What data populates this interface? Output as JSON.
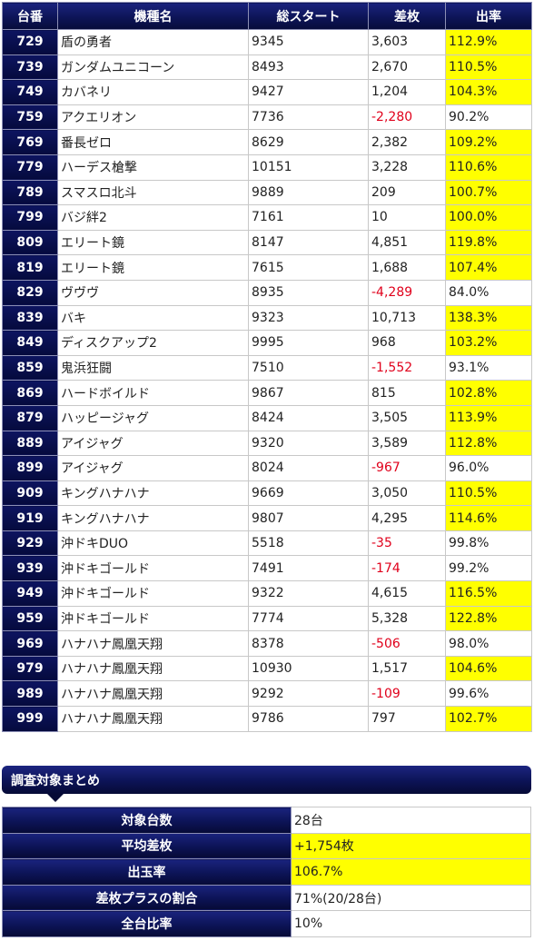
{
  "table": {
    "headers": [
      "台番",
      "機種名",
      "総スタート",
      "差枚",
      "出率"
    ],
    "rows": [
      {
        "no": "729",
        "name": "盾の勇者",
        "start": "9345",
        "diff": "3,603",
        "rate": "112.9%",
        "neg": false,
        "hl": true
      },
      {
        "no": "739",
        "name": "ガンダムユニコーン",
        "start": "8493",
        "diff": "2,670",
        "rate": "110.5%",
        "neg": false,
        "hl": true
      },
      {
        "no": "749",
        "name": "カバネリ",
        "start": "9427",
        "diff": "1,204",
        "rate": "104.3%",
        "neg": false,
        "hl": true
      },
      {
        "no": "759",
        "name": "アクエリオン",
        "start": "7736",
        "diff": "-2,280",
        "rate": "90.2%",
        "neg": true,
        "hl": false
      },
      {
        "no": "769",
        "name": "番長ゼロ",
        "start": "8629",
        "diff": "2,382",
        "rate": "109.2%",
        "neg": false,
        "hl": true
      },
      {
        "no": "779",
        "name": "ハーデス槍撃",
        "start": "10151",
        "diff": "3,228",
        "rate": "110.6%",
        "neg": false,
        "hl": true
      },
      {
        "no": "789",
        "name": "スマスロ北斗",
        "start": "9889",
        "diff": "209",
        "rate": "100.7%",
        "neg": false,
        "hl": true
      },
      {
        "no": "799",
        "name": "バジ絆2",
        "start": "7161",
        "diff": "10",
        "rate": "100.0%",
        "neg": false,
        "hl": true
      },
      {
        "no": "809",
        "name": "エリート鏡",
        "start": "8147",
        "diff": "4,851",
        "rate": "119.8%",
        "neg": false,
        "hl": true
      },
      {
        "no": "819",
        "name": "エリート鏡",
        "start": "7615",
        "diff": "1,688",
        "rate": "107.4%",
        "neg": false,
        "hl": true
      },
      {
        "no": "829",
        "name": "ヴヴヴ",
        "start": "8935",
        "diff": "-4,289",
        "rate": "84.0%",
        "neg": true,
        "hl": false
      },
      {
        "no": "839",
        "name": "バキ",
        "start": "9323",
        "diff": "10,713",
        "rate": "138.3%",
        "neg": false,
        "hl": true
      },
      {
        "no": "849",
        "name": "ディスクアップ2",
        "start": "9995",
        "diff": "968",
        "rate": "103.2%",
        "neg": false,
        "hl": true
      },
      {
        "no": "859",
        "name": "鬼浜狂闘",
        "start": "7510",
        "diff": "-1,552",
        "rate": "93.1%",
        "neg": true,
        "hl": false
      },
      {
        "no": "869",
        "name": "ハードボイルド",
        "start": "9867",
        "diff": "815",
        "rate": "102.8%",
        "neg": false,
        "hl": true
      },
      {
        "no": "879",
        "name": "ハッピージャグ",
        "start": "8424",
        "diff": "3,505",
        "rate": "113.9%",
        "neg": false,
        "hl": true
      },
      {
        "no": "889",
        "name": "アイジャグ",
        "start": "9320",
        "diff": "3,589",
        "rate": "112.8%",
        "neg": false,
        "hl": true
      },
      {
        "no": "899",
        "name": "アイジャグ",
        "start": "8024",
        "diff": "-967",
        "rate": "96.0%",
        "neg": true,
        "hl": false
      },
      {
        "no": "909",
        "name": "キングハナハナ",
        "start": "9669",
        "diff": "3,050",
        "rate": "110.5%",
        "neg": false,
        "hl": true
      },
      {
        "no": "919",
        "name": "キングハナハナ",
        "start": "9807",
        "diff": "4,295",
        "rate": "114.6%",
        "neg": false,
        "hl": true
      },
      {
        "no": "929",
        "name": "沖ドキDUO",
        "start": "5518",
        "diff": "-35",
        "rate": "99.8%",
        "neg": true,
        "hl": false
      },
      {
        "no": "939",
        "name": "沖ドキゴールド",
        "start": "7491",
        "diff": "-174",
        "rate": "99.2%",
        "neg": true,
        "hl": false
      },
      {
        "no": "949",
        "name": "沖ドキゴールド",
        "start": "9322",
        "diff": "4,615",
        "rate": "116.5%",
        "neg": false,
        "hl": true
      },
      {
        "no": "959",
        "name": "沖ドキゴールド",
        "start": "7774",
        "diff": "5,328",
        "rate": "122.8%",
        "neg": false,
        "hl": true
      },
      {
        "no": "969",
        "name": "ハナハナ鳳凰天翔",
        "start": "8378",
        "diff": "-506",
        "rate": "98.0%",
        "neg": true,
        "hl": false
      },
      {
        "no": "979",
        "name": "ハナハナ鳳凰天翔",
        "start": "10930",
        "diff": "1,517",
        "rate": "104.6%",
        "neg": false,
        "hl": true
      },
      {
        "no": "989",
        "name": "ハナハナ鳳凰天翔",
        "start": "9292",
        "diff": "-109",
        "rate": "99.6%",
        "neg": true,
        "hl": false
      },
      {
        "no": "999",
        "name": "ハナハナ鳳凰天翔",
        "start": "9786",
        "diff": "797",
        "rate": "102.7%",
        "neg": false,
        "hl": true
      }
    ]
  },
  "summary": {
    "title": "調査対象まとめ",
    "rows": [
      {
        "label": "対象台数",
        "value": "28台",
        "hl": false
      },
      {
        "label": "平均差枚",
        "value": "+1,754枚",
        "hl": true
      },
      {
        "label": "出玉率",
        "value": "106.7%",
        "hl": true
      },
      {
        "label": "差枚プラスの割合",
        "value": "71%(20/28台)",
        "hl": false
      },
      {
        "label": "全台比率",
        "value": "10%",
        "hl": false
      }
    ]
  },
  "colors": {
    "header_navy": "#0d1457",
    "highlight_yellow": "#ffff00",
    "negative_red": "#e0001b"
  }
}
